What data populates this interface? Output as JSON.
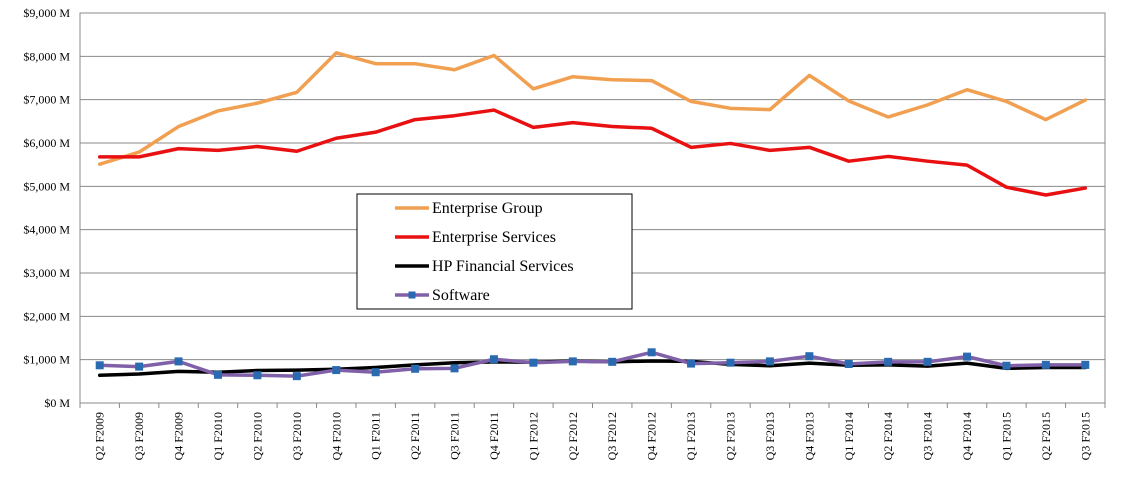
{
  "chart_data": {
    "type": "line",
    "title": "",
    "xlabel": "",
    "ylabel": "",
    "ylim": [
      0,
      9000
    ],
    "y_ticks": [
      {
        "value": 0,
        "label": "$0 M"
      },
      {
        "value": 1000,
        "label": "$1,000 M"
      },
      {
        "value": 2000,
        "label": "$2,000 M"
      },
      {
        "value": 3000,
        "label": "$3,000 M"
      },
      {
        "value": 4000,
        "label": "$4,000 M"
      },
      {
        "value": 5000,
        "label": "$5,000 M"
      },
      {
        "value": 6000,
        "label": "$6,000 M"
      },
      {
        "value": 7000,
        "label": "$7,000 M"
      },
      {
        "value": 8000,
        "label": "$8,000 M"
      },
      {
        "value": 9000,
        "label": "$9,000 M"
      }
    ],
    "grid": true,
    "legend_position": "center-left",
    "categories": [
      "Q2 F2009",
      "Q3 F2009",
      "Q4 F2009",
      "Q1 F2010",
      "Q2 F2010",
      "Q3 F2010",
      "Q4 F2010",
      "Q1 F2011",
      "Q2 F2011",
      "Q3 F2011",
      "Q4 F2011",
      "Q1 F2012",
      "Q2 F2012",
      "Q3 F2012",
      "Q4 F2012",
      "Q1 F2013",
      "Q2 F2013",
      "Q3 F2013",
      "Q4 F2013",
      "Q1 F2014",
      "Q2 F2014",
      "Q3 F2014",
      "Q4 F2014",
      "Q1 F2015",
      "Q2 F2015",
      "Q3 F2015"
    ],
    "series": [
      {
        "name": "Enterprise Group",
        "color": "#f0a050",
        "marker": "none",
        "values": [
          5510,
          5790,
          6380,
          6740,
          6920,
          7170,
          8080,
          7830,
          7830,
          7690,
          8020,
          7250,
          7530,
          7460,
          7440,
          6960,
          6800,
          6770,
          7560,
          6970,
          6600,
          6880,
          7230,
          6960,
          6540,
          6990
        ]
      },
      {
        "name": "Enterprise Services",
        "color": "#e81010",
        "marker": "none",
        "values": [
          5680,
          5680,
          5870,
          5830,
          5920,
          5810,
          6110,
          6250,
          6540,
          6630,
          6760,
          6360,
          6470,
          6380,
          6340,
          5900,
          5990,
          5830,
          5900,
          5580,
          5690,
          5580,
          5490,
          4980,
          4800,
          4960
        ]
      },
      {
        "name": "HP Financial Services",
        "color": "#000000",
        "marker": "none",
        "values": [
          640,
          670,
          730,
          710,
          750,
          760,
          780,
          820,
          880,
          930,
          950,
          940,
          970,
          950,
          970,
          960,
          890,
          860,
          920,
          870,
          880,
          850,
          920,
          800,
          820,
          820
        ]
      },
      {
        "name": "Software",
        "color": "#8060a8",
        "marker": "square",
        "marker_color": "#2a6ab0",
        "values": [
          870,
          840,
          960,
          650,
          640,
          620,
          760,
          710,
          790,
          800,
          1010,
          930,
          960,
          950,
          1170,
          910,
          930,
          960,
          1080,
          900,
          950,
          950,
          1070,
          860,
          880,
          880
        ]
      }
    ]
  }
}
